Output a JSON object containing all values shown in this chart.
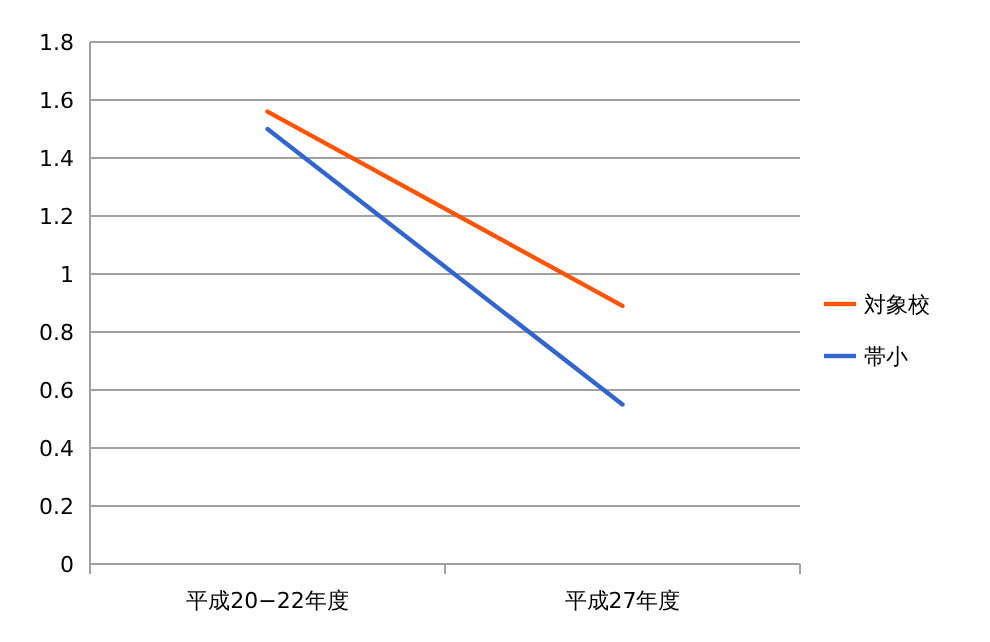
{
  "chart_data": {
    "type": "line",
    "categories": [
      "平成20−22年度",
      "平成27年度"
    ],
    "series": [
      {
        "name": "対象校",
        "color": "#ff5500",
        "values": [
          1.56,
          0.89
        ]
      },
      {
        "name": "帯小",
        "color": "#3366cc",
        "values": [
          1.5,
          0.55
        ]
      }
    ],
    "ylim": [
      0,
      1.8
    ],
    "yticks": [
      0,
      0.2,
      0.4,
      0.6,
      0.8,
      1,
      1.2,
      1.4,
      1.6,
      1.8
    ],
    "grid": "y",
    "legend": "right"
  }
}
